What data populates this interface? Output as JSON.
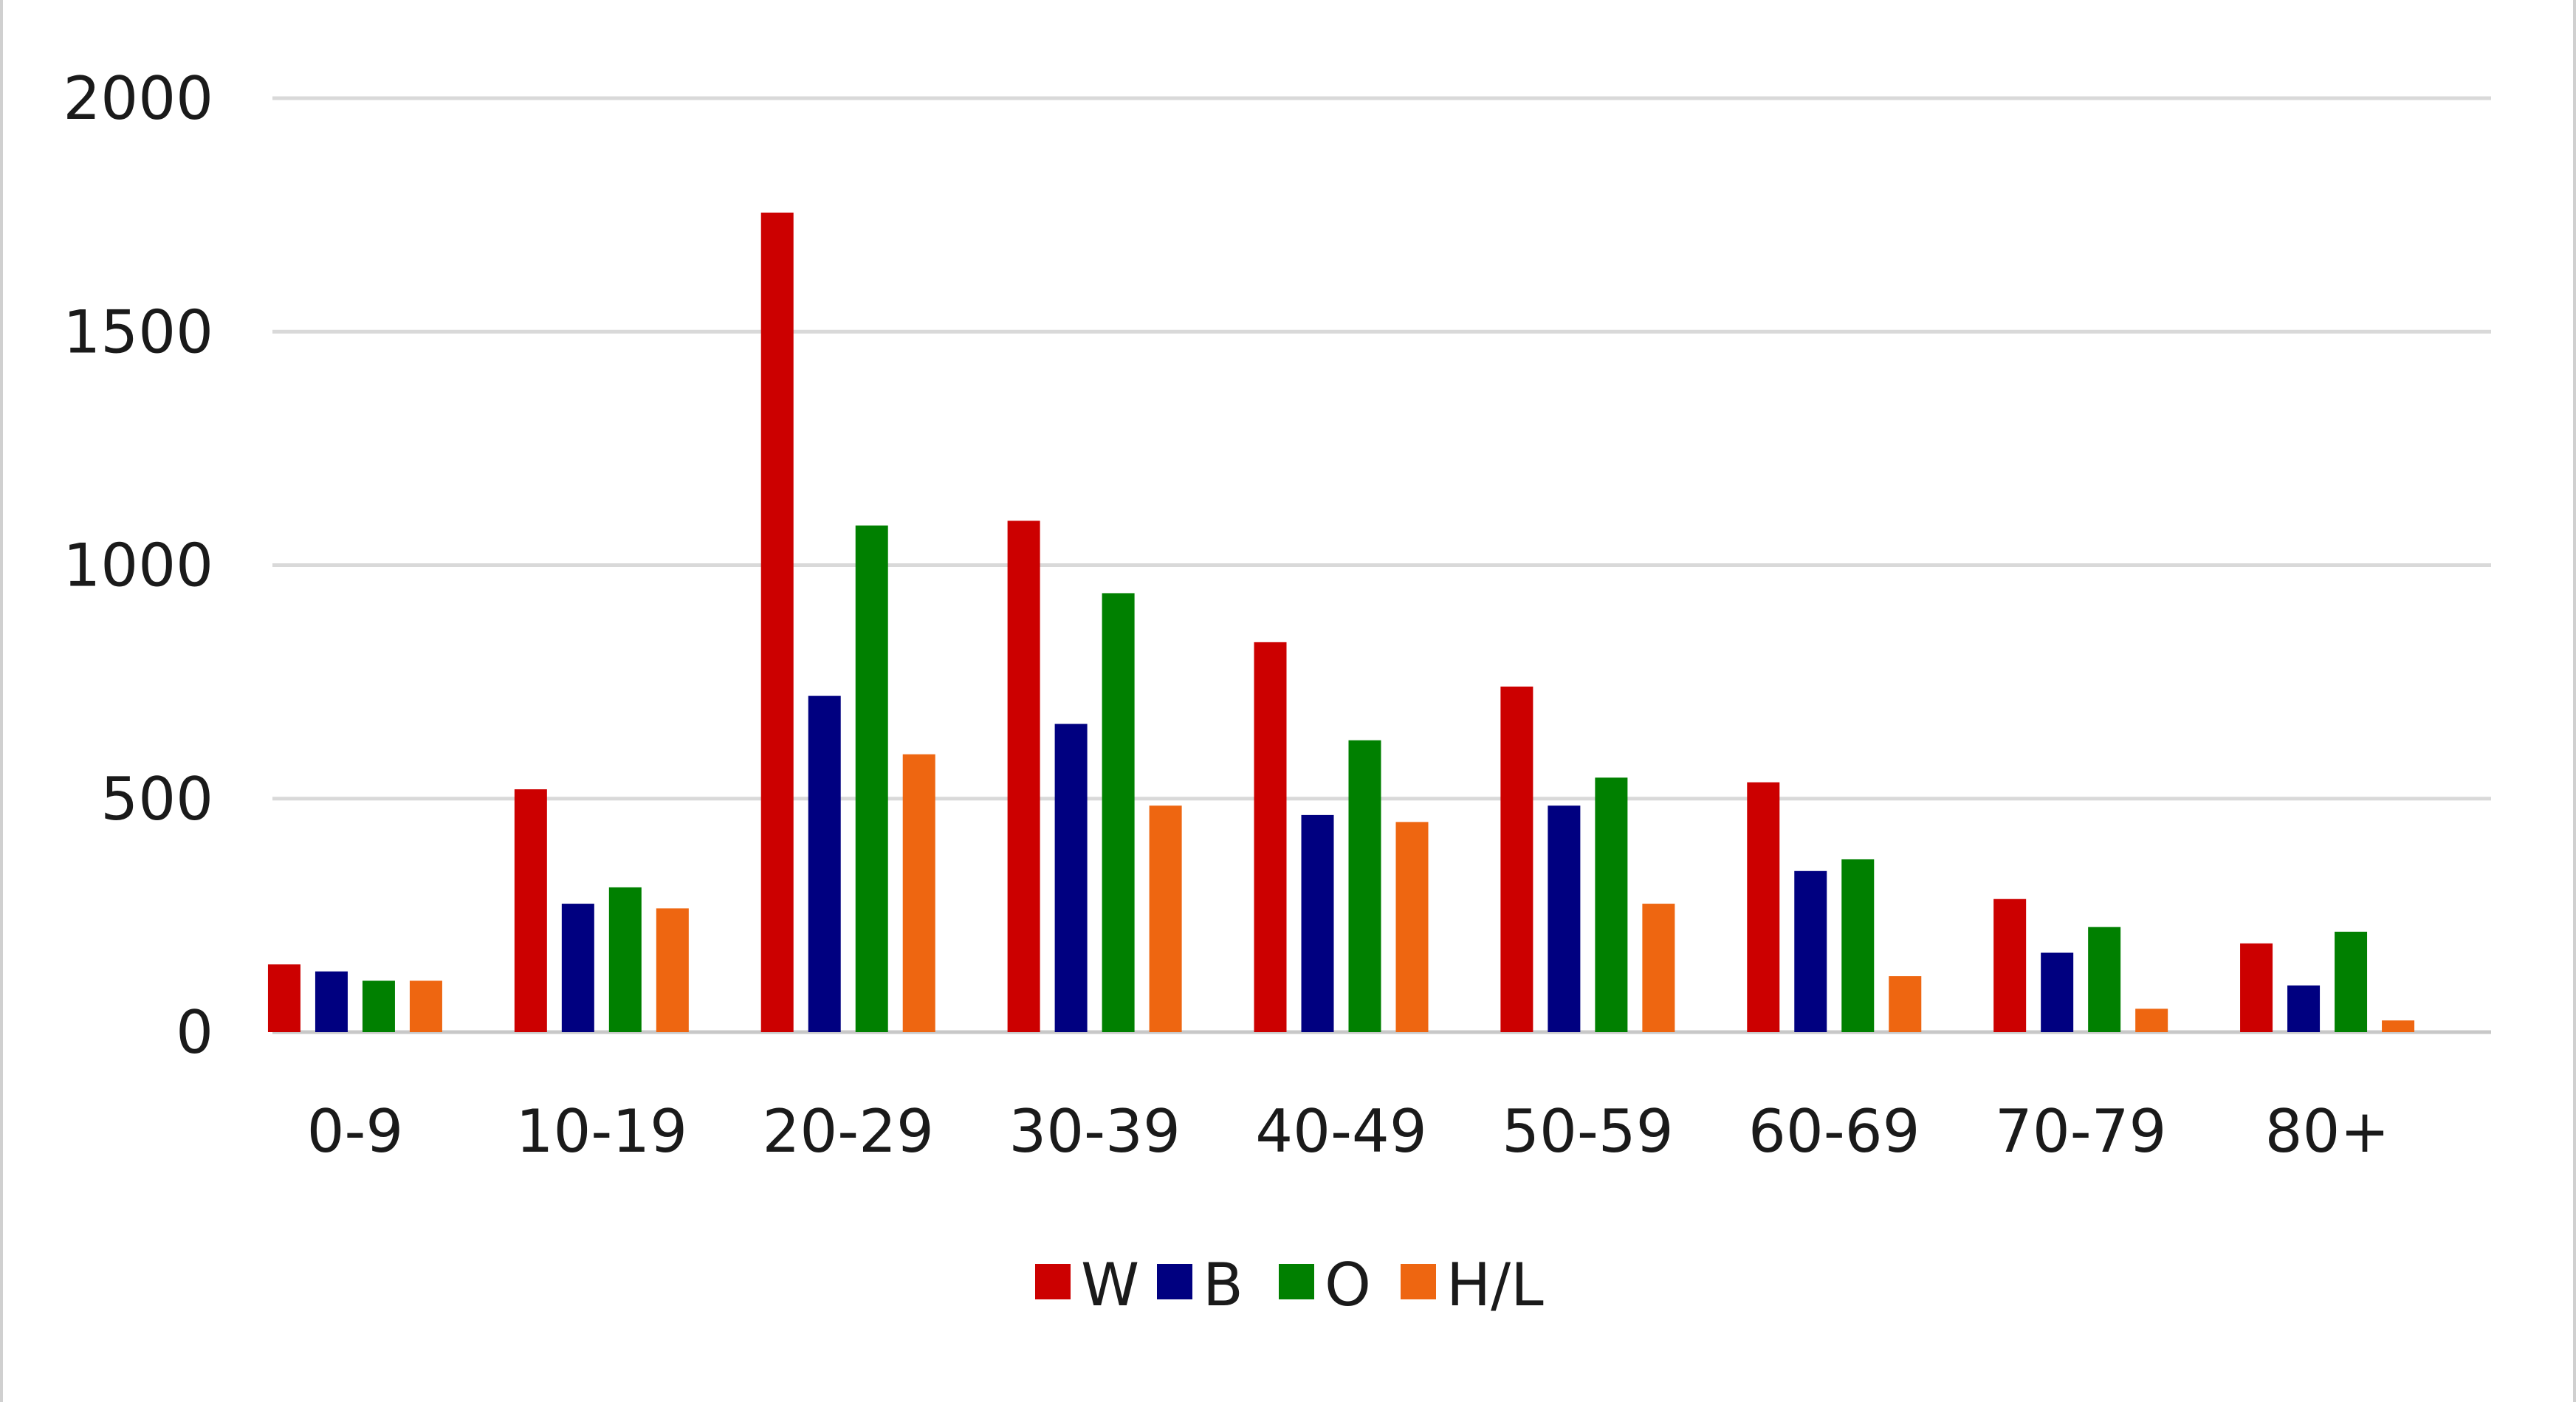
{
  "chart_data": {
    "type": "bar",
    "title": "",
    "xlabel": "",
    "ylabel": "",
    "categories": [
      "0-9",
      "10-19",
      "20-29",
      "30-39",
      "40-49",
      "50-59",
      "60-69",
      "70-79",
      "80+"
    ],
    "series": [
      {
        "name": "W",
        "color": "#cc0000",
        "values": [
          145,
          520,
          1755,
          1095,
          835,
          740,
          535,
          285,
          190
        ]
      },
      {
        "name": "B",
        "color": "#000080",
        "values": [
          130,
          275,
          720,
          660,
          465,
          485,
          345,
          170,
          100
        ]
      },
      {
        "name": "O",
        "color": "#008000",
        "values": [
          110,
          310,
          1085,
          940,
          625,
          545,
          370,
          225,
          215
        ]
      },
      {
        "name": "H/L",
        "color": "#ee6611",
        "values": [
          110,
          265,
          595,
          485,
          450,
          275,
          120,
          50,
          25
        ]
      }
    ],
    "ylim": [
      0,
      2000
    ],
    "yticks": [
      0,
      500,
      1000,
      1500,
      2000
    ],
    "grid": true,
    "legend_position": "bottom-center",
    "colors": {
      "gridline": "#d9d9d9",
      "axis": "#c8c8c8",
      "text": "#1a1a1a"
    }
  }
}
